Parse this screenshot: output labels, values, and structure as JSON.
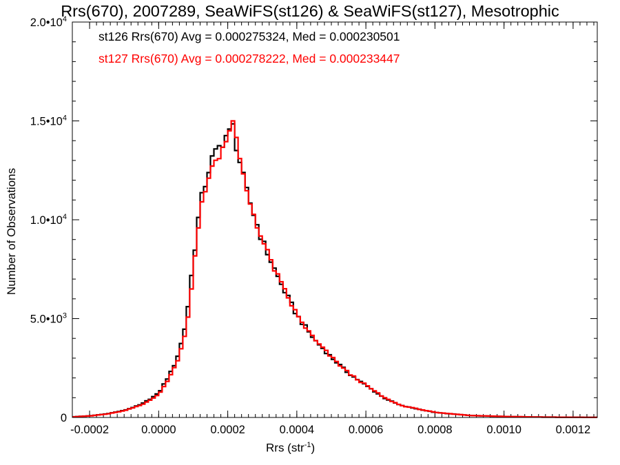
{
  "chart_data": {
    "type": "histogram",
    "title": "Rrs(670), 2007289, SeaWiFS(st126) & SeaWiFS(st127), Mesotrophic",
    "xlabel_main": "Rrs (str",
    "xlabel_sup": "-1",
    "xlabel_end": ")",
    "ylabel": "Number of Observations",
    "xlim": [
      -0.00025,
      0.00127
    ],
    "ylim": [
      0,
      20000
    ],
    "grid": false,
    "x_ticks": [
      {
        "value": -0.0002,
        "label": "-0.0002"
      },
      {
        "value": 0.0,
        "label": "0.0000"
      },
      {
        "value": 0.0002,
        "label": "0.0002"
      },
      {
        "value": 0.0004,
        "label": "0.0004"
      },
      {
        "value": 0.0006,
        "label": "0.0006"
      },
      {
        "value": 0.0008,
        "label": "0.0008"
      },
      {
        "value": 0.001,
        "label": "0.0010"
      },
      {
        "value": 0.0012,
        "label": "0.0012"
      }
    ],
    "y_ticks": [
      {
        "value": 0,
        "label": "0",
        "sup": ""
      },
      {
        "value": 5000,
        "label": "5.0•10",
        "sup": "3"
      },
      {
        "value": 10000,
        "label": "1.0•10",
        "sup": "4"
      },
      {
        "value": 15000,
        "label": "1.5•10",
        "sup": "4"
      },
      {
        "value": 20000,
        "label": "2.0•10",
        "sup": "4"
      }
    ],
    "bin_width": 1e-05,
    "peak": {
      "x": 0.000215,
      "y": 15000
    },
    "anchors_x": [
      -0.00025,
      -0.0002,
      -0.00015,
      -0.0001,
      -5e-05,
      0.0,
      4e-05,
      6e-05,
      8e-05,
      0.0001,
      0.00012,
      0.00015,
      0.00018,
      0.0002,
      0.00022,
      0.00025,
      0.0003,
      0.00035,
      0.0004,
      0.00045,
      0.0005,
      0.00055,
      0.0006,
      0.00065,
      0.0007,
      0.0008,
      0.0009,
      0.001,
      0.0011,
      0.00127
    ],
    "anchors_y": [
      30,
      80,
      180,
      350,
      650,
      1200,
      2400,
      3300,
      4800,
      7800,
      10600,
      12700,
      13600,
      14200,
      14000,
      11500,
      8800,
      6800,
      5100,
      3900,
      3000,
      2200,
      1600,
      1000,
      600,
      250,
      100,
      50,
      20,
      5
    ],
    "series": [
      {
        "name": "st126",
        "color": "#000000",
        "label": "st126 Rrs(670) Avg = 0.000275324, Med = 0.000230501",
        "offset": 0.0,
        "scale": 1.015
      },
      {
        "name": "st127",
        "color": "#ff0000",
        "label": "st127 Rrs(670) Avg = 0.000278222, Med = 0.000233447",
        "offset": 3e-06,
        "scale": 1.0
      }
    ]
  }
}
